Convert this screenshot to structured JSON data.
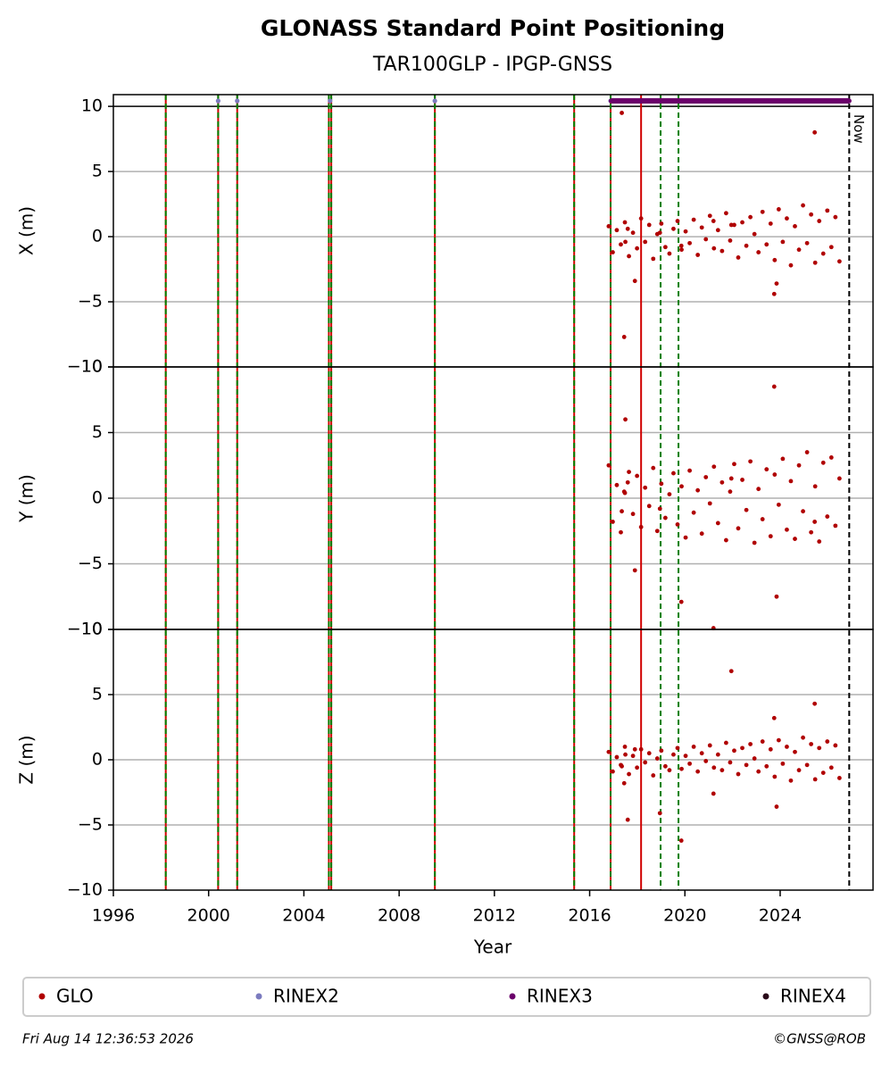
{
  "chart_data": {
    "type": "scatter",
    "title": "GLONASS Standard Point Positioning",
    "subtitle": "TAR100GLP - IPGP-GNSS",
    "xlabel": "Year",
    "xlim": [
      1996,
      2027.9
    ],
    "xticks": [
      1996,
      2000,
      2004,
      2008,
      2012,
      2016,
      2020,
      2024
    ],
    "grid": true,
    "panels": [
      {
        "ylabel": "X (m)",
        "ylim": [
          -10,
          10.9
        ],
        "yticks": [
          {
            "value": -10,
            "label": "−10"
          },
          {
            "value": -5,
            "label": "−5"
          },
          0,
          5,
          10
        ],
        "values": [
          0.8,
          -1.2,
          0.5,
          -0.6,
          1.1,
          -1.5,
          0.3,
          -0.9,
          1.4,
          -0.4,
          0.9,
          -1.7,
          0.2,
          1.0,
          -0.8,
          -1.3,
          0.6,
          1.2,
          -1.0,
          0.4,
          -0.5,
          1.3,
          -1.4,
          0.7,
          -0.2,
          1.6,
          -0.9,
          0.5,
          -1.1,
          1.8,
          -0.3,
          0.9,
          -1.6,
          1.1,
          -0.7,
          1.5,
          0.2,
          -1.2,
          1.9,
          -0.6,
          1.0,
          -1.8,
          2.1,
          -0.4,
          1.4,
          -2.2,
          0.8,
          -1.0,
          2.4,
          -0.5,
          1.7,
          -2.0,
          1.2,
          -1.3,
          2.0,
          -0.8,
          1.5,
          -1.9,
          9.5,
          -7.7,
          -0.4,
          0.6,
          -3.4,
          0.3,
          -0.7,
          1.2,
          0.9,
          -4.4,
          -3.6,
          8.0
        ]
      },
      {
        "ylabel": "Y (m)",
        "ylim": [
          -10,
          10
        ],
        "yticks": [
          {
            "value": -10,
            "label": "−10"
          },
          {
            "value": -5,
            "label": "−5"
          },
          0,
          5,
          10
        ],
        "values": [
          2.5,
          -1.8,
          1.0,
          -2.6,
          0.4,
          2.0,
          -1.2,
          1.7,
          -2.2,
          0.8,
          -0.6,
          2.3,
          -2.5,
          1.1,
          -1.5,
          0.3,
          1.9,
          -2.0,
          0.9,
          -3.0,
          2.1,
          -1.1,
          0.6,
          -2.7,
          1.6,
          -0.4,
          2.4,
          -1.9,
          1.2,
          -3.2,
          0.5,
          2.6,
          -2.3,
          1.4,
          -0.9,
          2.8,
          -3.4,
          0.7,
          -1.6,
          2.2,
          -2.9,
          1.8,
          -0.5,
          3.0,
          -2.4,
          1.3,
          -3.1,
          2.5,
          -1.0,
          3.5,
          -2.6,
          0.9,
          -3.3,
          2.7,
          -1.4,
          3.1,
          -2.1,
          1.5,
          -1.0,
          0.5,
          6.0,
          1.2,
          -5.5,
          -0.8,
          -7.9,
          -9.9,
          1.5,
          8.5,
          -7.5,
          -1.8
        ]
      },
      {
        "ylabel": "Z (m)",
        "ylim": [
          -10,
          10
        ],
        "yticks": [
          {
            "value": -10,
            "label": "−10"
          },
          {
            "value": -5,
            "label": "−5"
          },
          0,
          5,
          10
        ],
        "values": [
          0.6,
          -0.9,
          0.2,
          -0.4,
          1.0,
          -1.1,
          0.3,
          -0.6,
          0.8,
          -0.2,
          0.5,
          -1.2,
          0.1,
          0.7,
          -0.5,
          -0.8,
          0.4,
          0.9,
          -0.7,
          0.3,
          -0.3,
          1.0,
          -0.9,
          0.5,
          -0.1,
          1.1,
          -0.6,
          0.4,
          -0.8,
          1.3,
          -0.2,
          0.7,
          -1.1,
          0.9,
          -0.4,
          1.2,
          0.1,
          -0.9,
          1.4,
          -0.5,
          0.8,
          -1.3,
          1.5,
          -0.3,
          1.0,
          -1.6,
          0.6,
          -0.8,
          1.7,
          -0.4,
          1.2,
          -1.5,
          0.9,
          -1.0,
          1.4,
          -0.6,
          1.1,
          -1.4,
          -0.5,
          -1.8,
          0.4,
          -4.6,
          0.8,
          -4.1,
          -6.2,
          -2.6,
          6.8,
          3.2,
          -3.6,
          4.3
        ]
      }
    ],
    "series": [
      {
        "name": "GLO",
        "color": "#b00000",
        "x": [
          2016.8,
          2016.97,
          2017.14,
          2017.31,
          2017.48,
          2017.65,
          2017.82,
          2017.99,
          2018.16,
          2018.33,
          2018.5,
          2018.67,
          2018.84,
          2019.01,
          2019.18,
          2019.35,
          2019.52,
          2019.69,
          2019.86,
          2020.03,
          2020.2,
          2020.37,
          2020.54,
          2020.71,
          2020.88,
          2021.05,
          2021.22,
          2021.39,
          2021.56,
          2021.73,
          2021.9,
          2022.07,
          2022.24,
          2022.41,
          2022.58,
          2022.75,
          2022.92,
          2023.09,
          2023.26,
          2023.43,
          2023.6,
          2023.77,
          2023.94,
          2024.11,
          2024.28,
          2024.45,
          2024.62,
          2024.79,
          2024.96,
          2025.13,
          2025.3,
          2025.47,
          2025.64,
          2025.81,
          2025.98,
          2026.15,
          2026.32,
          2026.49,
          2017.35,
          2017.45,
          2017.5,
          2017.6,
          2017.9,
          2018.95,
          2019.85,
          2021.2,
          2021.95,
          2023.75,
          2023.85,
          2025.45
        ]
      },
      {
        "name": "RINEX2",
        "color": "#7b7bbf",
        "x": [
          2000.4,
          2001.2,
          2005.1,
          2009.5,
          2016.88
        ]
      },
      {
        "name": "RINEX3",
        "color": "#6b006b",
        "x": [
          2016.9,
          2017.4,
          2017.9,
          2018.4,
          2018.9,
          2019.4,
          2019.9,
          2020.4,
          2020.9,
          2021.4,
          2021.9,
          2022.4,
          2022.9,
          2023.4,
          2023.9,
          2024.4,
          2024.9,
          2025.4,
          2025.9,
          2026.4,
          2026.9
        ]
      },
      {
        "name": "RINEX4",
        "color": "#2a0a1a",
        "x": []
      }
    ],
    "red_lines": [
      1998.2,
      2000.4,
      2001.2,
      2005.05,
      2005.15,
      2009.5,
      2015.35,
      2016.88,
      2018.16
    ],
    "green_lines": [
      1998.2,
      2000.4,
      2001.2,
      2005.05,
      2005.15,
      2009.5,
      2015.35,
      2016.88,
      2018.98,
      2019.73
    ],
    "now": 2026.9,
    "now_label": "Now",
    "timestamp": "Fri Aug 14 12:36:53 2026",
    "credit": "©GNSS@ROB"
  }
}
